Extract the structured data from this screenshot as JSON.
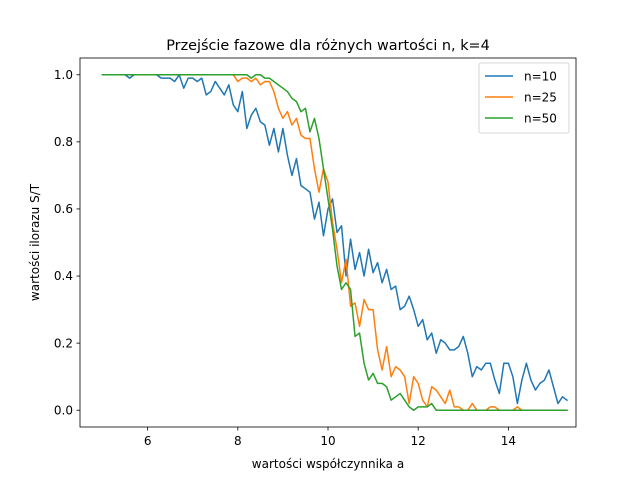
{
  "chart_data": {
    "type": "line",
    "title": "Przejście fazowe dla różnych wartości n, k=4",
    "xlabel": "wartości współczynnika a",
    "ylabel": "wartości ilorazu S/T",
    "xlim": [
      4.5,
      15.5
    ],
    "ylim": [
      -0.05,
      1.05
    ],
    "xticks": [
      6,
      8,
      10,
      12,
      14
    ],
    "yticks": [
      0.0,
      0.2,
      0.4,
      0.6,
      0.8,
      1.0
    ],
    "ytick_labels": [
      "0.0",
      "0.2",
      "0.4",
      "0.6",
      "0.8",
      "1.0"
    ],
    "grid": false,
    "legend_position": "top-right",
    "x_start": 5.0,
    "x_step": 0.1,
    "series": [
      {
        "name": "n=10",
        "color": "#1f77b4",
        "values": [
          1.0,
          1.0,
          1.0,
          1.0,
          1.0,
          1.0,
          0.99,
          1.0,
          1.0,
          1.0,
          1.0,
          1.0,
          1.0,
          0.99,
          0.99,
          0.99,
          0.98,
          1.0,
          0.96,
          0.99,
          0.99,
          0.98,
          0.99,
          0.94,
          0.95,
          0.98,
          0.96,
          0.94,
          0.97,
          0.91,
          0.89,
          0.95,
          0.84,
          0.88,
          0.9,
          0.86,
          0.85,
          0.79,
          0.84,
          0.77,
          0.84,
          0.76,
          0.7,
          0.75,
          0.67,
          0.66,
          0.65,
          0.57,
          0.62,
          0.52,
          0.6,
          0.63,
          0.53,
          0.55,
          0.4,
          0.51,
          0.42,
          0.47,
          0.4,
          0.48,
          0.41,
          0.44,
          0.38,
          0.42,
          0.36,
          0.37,
          0.3,
          0.31,
          0.34,
          0.3,
          0.25,
          0.27,
          0.21,
          0.23,
          0.17,
          0.21,
          0.2,
          0.18,
          0.18,
          0.19,
          0.22,
          0.17,
          0.1,
          0.13,
          0.12,
          0.14,
          0.14,
          0.09,
          0.05,
          0.14,
          0.14,
          0.1,
          0.02,
          0.09,
          0.14,
          0.09,
          0.06,
          0.08,
          0.09,
          0.12,
          0.07,
          0.02,
          0.04,
          0.03
        ]
      },
      {
        "name": "n=25",
        "color": "#ff7f0e",
        "values": [
          1.0,
          1.0,
          1.0,
          1.0,
          1.0,
          1.0,
          1.0,
          1.0,
          1.0,
          1.0,
          1.0,
          1.0,
          1.0,
          1.0,
          1.0,
          1.0,
          1.0,
          1.0,
          1.0,
          1.0,
          1.0,
          1.0,
          1.0,
          1.0,
          1.0,
          1.0,
          1.0,
          1.0,
          1.0,
          1.0,
          0.98,
          0.99,
          0.99,
          0.98,
          0.99,
          0.97,
          0.98,
          0.98,
          0.95,
          0.9,
          0.87,
          0.89,
          0.85,
          0.87,
          0.82,
          0.81,
          0.81,
          0.72,
          0.65,
          0.72,
          0.68,
          0.56,
          0.48,
          0.38,
          0.45,
          0.31,
          0.32,
          0.25,
          0.33,
          0.3,
          0.3,
          0.18,
          0.12,
          0.19,
          0.1,
          0.13,
          0.12,
          0.1,
          0.02,
          0.1,
          0.08,
          0.03,
          0.01,
          0.07,
          0.06,
          0.04,
          0.02,
          0.06,
          0.01,
          0.01,
          0.0,
          0.0,
          0.02,
          0.0,
          0.0,
          0.0,
          0.01,
          0.01,
          0.0,
          0.0,
          0.0,
          0.0,
          0.01,
          0.0,
          0.0,
          0.0,
          0.0,
          0.0,
          0.0,
          0.0,
          0.0,
          0.0,
          0.0,
          0.0
        ]
      },
      {
        "name": "n=50",
        "color": "#2ca02c",
        "values": [
          1.0,
          1.0,
          1.0,
          1.0,
          1.0,
          1.0,
          1.0,
          1.0,
          1.0,
          1.0,
          1.0,
          1.0,
          1.0,
          1.0,
          1.0,
          1.0,
          1.0,
          1.0,
          1.0,
          1.0,
          1.0,
          1.0,
          1.0,
          1.0,
          1.0,
          1.0,
          1.0,
          1.0,
          1.0,
          1.0,
          1.0,
          1.0,
          1.0,
          0.99,
          1.0,
          1.0,
          0.99,
          0.99,
          0.98,
          0.97,
          0.96,
          0.95,
          0.93,
          0.92,
          0.89,
          0.9,
          0.83,
          0.87,
          0.81,
          0.72,
          0.63,
          0.54,
          0.43,
          0.36,
          0.38,
          0.36,
          0.22,
          0.23,
          0.14,
          0.09,
          0.11,
          0.08,
          0.08,
          0.07,
          0.03,
          0.04,
          0.05,
          0.03,
          0.01,
          0.0,
          0.01,
          0.01,
          0.01,
          0.02,
          0.0,
          0.0,
          0.0,
          0.0,
          0.0,
          0.0,
          0.0,
          0.0,
          0.0,
          0.0,
          0.0,
          0.0,
          0.0,
          0.0,
          0.0,
          0.0,
          0.0,
          0.0,
          0.0,
          0.0,
          0.0,
          0.0,
          0.0,
          0.0,
          0.0,
          0.0,
          0.0,
          0.0,
          0.0,
          0.0
        ]
      }
    ]
  }
}
